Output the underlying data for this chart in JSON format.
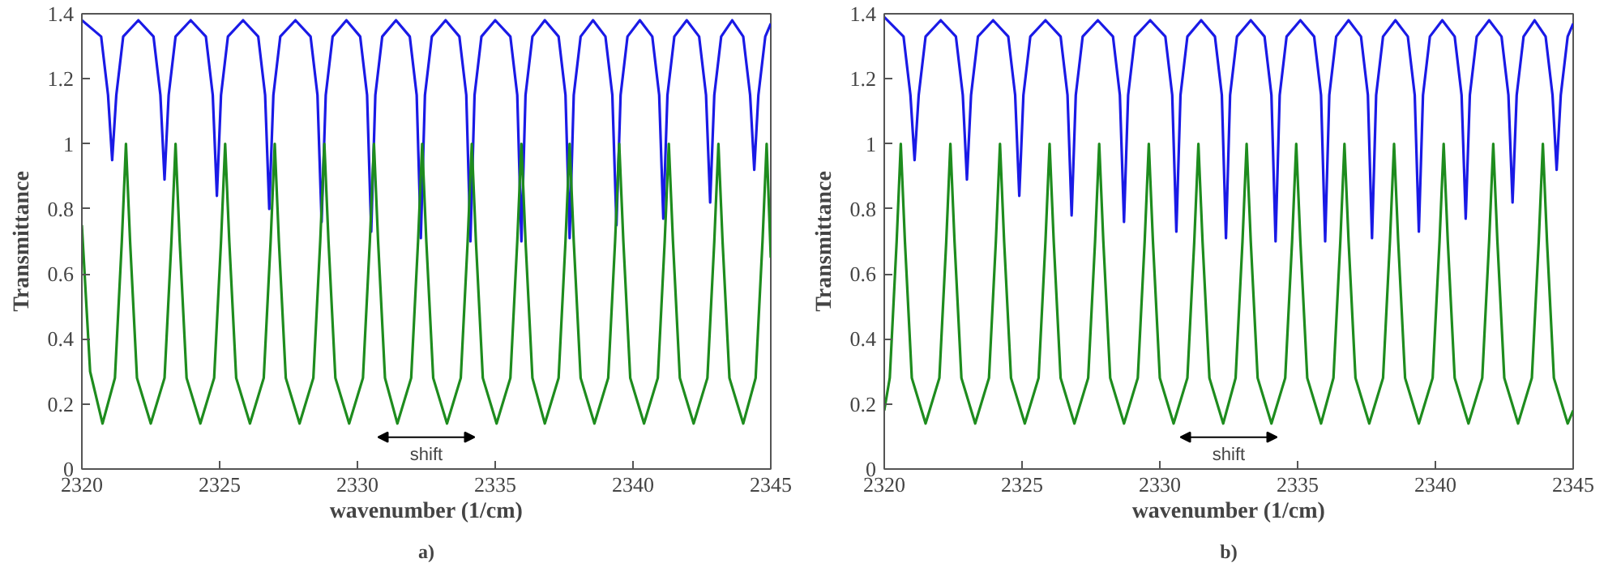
{
  "chart_data": [
    {
      "type": "line",
      "xlabel": "wavenumber (1/cm)",
      "ylabel": "Transmittance",
      "xlim": [
        2320,
        2345
      ],
      "ylim": [
        0,
        1.4
      ],
      "xticks": [
        2320,
        2325,
        2330,
        2335,
        2340,
        2345
      ],
      "yticks": [
        0,
        0.2,
        0.4,
        0.6,
        0.8,
        1,
        1.2,
        1.4
      ],
      "grid": false,
      "line_style": "solid",
      "marker": "none",
      "annotations": [
        "shift",
        "a)"
      ],
      "series": [
        {
          "color": "#1a1ae6",
          "x": [
            2320,
            2320.7,
            2320.95,
            2321.1,
            2321.25,
            2321.5,
            2322.05,
            2322.6,
            2322.85,
            2323.0,
            2323.15,
            2323.4,
            2323.95,
            2324.5,
            2324.75,
            2324.9,
            2325.05,
            2325.3,
            2325.85,
            2326.4,
            2326.65,
            2326.8,
            2326.95,
            2327.2,
            2327.75,
            2328.3,
            2328.55,
            2328.7,
            2328.85,
            2329.1,
            2329.6,
            2330.1,
            2330.35,
            2330.5,
            2330.65,
            2330.9,
            2331.4,
            2331.9,
            2332.15,
            2332.3,
            2332.45,
            2332.7,
            2333.2,
            2333.7,
            2333.95,
            2334.1,
            2334.25,
            2334.5,
            2335.0,
            2335.55,
            2335.8,
            2335.95,
            2336.1,
            2336.35,
            2336.8,
            2337.3,
            2337.55,
            2337.7,
            2337.85,
            2338.1,
            2338.55,
            2339.0,
            2339.25,
            2339.4,
            2339.55,
            2339.8,
            2340.25,
            2340.7,
            2340.95,
            2341.1,
            2341.25,
            2341.5,
            2341.95,
            2342.4,
            2342.65,
            2342.8,
            2342.95,
            2343.2,
            2343.6,
            2344.0,
            2344.25,
            2344.4,
            2344.55,
            2344.8,
            2345
          ],
          "values": [
            1.38,
            1.33,
            1.15,
            0.95,
            1.15,
            1.33,
            1.38,
            1.33,
            1.15,
            0.89,
            1.15,
            1.33,
            1.38,
            1.33,
            1.15,
            0.84,
            1.15,
            1.33,
            1.38,
            1.33,
            1.15,
            0.8,
            1.15,
            1.33,
            1.38,
            1.33,
            1.15,
            0.76,
            1.15,
            1.33,
            1.38,
            1.33,
            1.15,
            0.73,
            1.15,
            1.33,
            1.38,
            1.33,
            1.15,
            0.71,
            1.15,
            1.33,
            1.38,
            1.33,
            1.15,
            0.7,
            1.15,
            1.33,
            1.38,
            1.33,
            1.15,
            0.7,
            1.15,
            1.33,
            1.38,
            1.33,
            1.15,
            0.71,
            1.15,
            1.33,
            1.38,
            1.33,
            1.15,
            0.75,
            1.15,
            1.33,
            1.38,
            1.33,
            1.15,
            0.77,
            1.15,
            1.33,
            1.38,
            1.33,
            1.15,
            0.82,
            1.15,
            1.33,
            1.38,
            1.33,
            1.15,
            0.92,
            1.15,
            1.33,
            1.37
          ]
        },
        {
          "color": "#1e8c1e",
          "x": [
            2320,
            2320.3,
            2320.75,
            2321.2,
            2321.45,
            2321.6,
            2321.75,
            2322.0,
            2322.5,
            2323.0,
            2323.25,
            2323.4,
            2323.55,
            2323.8,
            2324.3,
            2324.8,
            2325.05,
            2325.2,
            2325.35,
            2325.6,
            2326.1,
            2326.6,
            2326.85,
            2327.0,
            2327.15,
            2327.4,
            2327.9,
            2328.4,
            2328.65,
            2328.8,
            2328.95,
            2329.2,
            2329.7,
            2330.2,
            2330.45,
            2330.6,
            2330.75,
            2331.0,
            2331.45,
            2331.95,
            2332.2,
            2332.35,
            2332.5,
            2332.75,
            2333.25,
            2333.75,
            2334.0,
            2334.15,
            2334.3,
            2334.55,
            2335.05,
            2335.55,
            2335.8,
            2335.95,
            2336.1,
            2336.35,
            2336.8,
            2337.3,
            2337.55,
            2337.7,
            2337.85,
            2338.1,
            2338.6,
            2339.1,
            2339.35,
            2339.5,
            2339.65,
            2339.9,
            2340.4,
            2340.9,
            2341.15,
            2341.3,
            2341.45,
            2341.7,
            2342.2,
            2342.7,
            2342.95,
            2343.1,
            2343.25,
            2343.5,
            2344.0,
            2344.45,
            2344.7,
            2344.85,
            2345
          ],
          "values": [
            0.75,
            0.3,
            0.14,
            0.28,
            0.7,
            1,
            0.7,
            0.28,
            0.14,
            0.28,
            0.7,
            1,
            0.7,
            0.28,
            0.14,
            0.28,
            0.7,
            1,
            0.7,
            0.28,
            0.14,
            0.28,
            0.7,
            1,
            0.7,
            0.28,
            0.14,
            0.28,
            0.7,
            1,
            0.7,
            0.28,
            0.14,
            0.28,
            0.7,
            1,
            0.7,
            0.28,
            0.14,
            0.28,
            0.7,
            1,
            0.7,
            0.28,
            0.14,
            0.28,
            0.7,
            1,
            0.7,
            0.28,
            0.14,
            0.28,
            0.7,
            1,
            0.7,
            0.28,
            0.14,
            0.28,
            0.7,
            1,
            0.7,
            0.28,
            0.14,
            0.28,
            0.7,
            1,
            0.7,
            0.28,
            0.14,
            0.28,
            0.7,
            1,
            0.7,
            0.28,
            0.14,
            0.28,
            0.7,
            1,
            0.7,
            0.28,
            0.14,
            0.28,
            0.7,
            1,
            0.65
          ]
        }
      ]
    },
    {
      "type": "line",
      "xlabel": "wavenumber (1/cm)",
      "ylabel": "Transmittance",
      "xlim": [
        2320,
        2345
      ],
      "ylim": [
        0,
        1.4
      ],
      "xticks": [
        2320,
        2325,
        2330,
        2335,
        2340,
        2345
      ],
      "yticks": [
        0,
        0.2,
        0.4,
        0.6,
        0.8,
        1,
        1.2,
        1.4
      ],
      "grid": false,
      "line_style": "solid",
      "marker": "none",
      "annotations": [
        "shift",
        "b)"
      ],
      "series": [
        {
          "color": "#1a1ae6",
          "x": [
            2320,
            2320.7,
            2320.95,
            2321.1,
            2321.25,
            2321.5,
            2322.05,
            2322.6,
            2322.85,
            2323.0,
            2323.15,
            2323.4,
            2323.95,
            2324.5,
            2324.75,
            2324.9,
            2325.05,
            2325.3,
            2325.85,
            2326.4,
            2326.65,
            2326.8,
            2326.95,
            2327.2,
            2327.75,
            2328.3,
            2328.55,
            2328.7,
            2328.85,
            2329.1,
            2329.65,
            2330.2,
            2330.45,
            2330.6,
            2330.75,
            2331.0,
            2331.5,
            2332.0,
            2332.25,
            2332.4,
            2332.55,
            2332.8,
            2333.3,
            2333.8,
            2334.05,
            2334.2,
            2334.35,
            2334.6,
            2335.1,
            2335.6,
            2335.85,
            2336.0,
            2336.15,
            2336.4,
            2336.85,
            2337.3,
            2337.55,
            2337.7,
            2337.85,
            2338.1,
            2338.55,
            2339.0,
            2339.25,
            2339.4,
            2339.55,
            2339.8,
            2340.25,
            2340.7,
            2340.95,
            2341.1,
            2341.25,
            2341.5,
            2341.95,
            2342.4,
            2342.65,
            2342.8,
            2342.95,
            2343.2,
            2343.6,
            2344.0,
            2344.25,
            2344.4,
            2344.55,
            2344.8,
            2345
          ],
          "values": [
            1.39,
            1.33,
            1.15,
            0.95,
            1.15,
            1.33,
            1.38,
            1.33,
            1.15,
            0.89,
            1.15,
            1.33,
            1.38,
            1.33,
            1.15,
            0.84,
            1.15,
            1.33,
            1.38,
            1.33,
            1.15,
            0.78,
            1.15,
            1.33,
            1.38,
            1.33,
            1.15,
            0.76,
            1.15,
            1.33,
            1.38,
            1.33,
            1.15,
            0.73,
            1.15,
            1.33,
            1.38,
            1.33,
            1.15,
            0.71,
            1.15,
            1.33,
            1.38,
            1.33,
            1.15,
            0.7,
            1.15,
            1.33,
            1.38,
            1.33,
            1.15,
            0.7,
            1.15,
            1.33,
            1.38,
            1.33,
            1.15,
            0.71,
            1.15,
            1.33,
            1.38,
            1.33,
            1.15,
            0.73,
            1.15,
            1.33,
            1.38,
            1.33,
            1.15,
            0.77,
            1.15,
            1.33,
            1.38,
            1.33,
            1.15,
            0.82,
            1.15,
            1.33,
            1.38,
            1.33,
            1.15,
            0.92,
            1.15,
            1.33,
            1.37
          ]
        },
        {
          "color": "#1e8c1e",
          "x": [
            2320,
            2320.2,
            2320.45,
            2320.6,
            2320.75,
            2321.0,
            2321.5,
            2322.0,
            2322.25,
            2322.4,
            2322.55,
            2322.8,
            2323.3,
            2323.8,
            2324.05,
            2324.2,
            2324.35,
            2324.6,
            2325.1,
            2325.6,
            2325.85,
            2326.0,
            2326.15,
            2326.4,
            2326.9,
            2327.4,
            2327.65,
            2327.8,
            2327.95,
            2328.2,
            2328.7,
            2329.2,
            2329.45,
            2329.6,
            2329.75,
            2330.0,
            2330.5,
            2331.0,
            2331.25,
            2331.4,
            2331.55,
            2331.8,
            2332.3,
            2332.75,
            2333.0,
            2333.15,
            2333.3,
            2333.55,
            2334.05,
            2334.55,
            2334.8,
            2334.95,
            2335.1,
            2335.35,
            2335.85,
            2336.3,
            2336.55,
            2336.7,
            2336.85,
            2337.1,
            2337.6,
            2338.1,
            2338.35,
            2338.5,
            2338.65,
            2338.9,
            2339.4,
            2339.9,
            2340.15,
            2340.3,
            2340.45,
            2340.7,
            2341.2,
            2341.7,
            2341.95,
            2342.1,
            2342.25,
            2342.5,
            2343.0,
            2343.5,
            2343.75,
            2343.9,
            2344.05,
            2344.3,
            2344.8,
            2345
          ],
          "values": [
            0.18,
            0.28,
            0.7,
            1,
            0.7,
            0.28,
            0.14,
            0.28,
            0.7,
            1,
            0.7,
            0.28,
            0.14,
            0.28,
            0.7,
            1,
            0.7,
            0.28,
            0.14,
            0.28,
            0.7,
            1,
            0.7,
            0.28,
            0.14,
            0.28,
            0.7,
            1,
            0.7,
            0.28,
            0.14,
            0.28,
            0.7,
            1,
            0.7,
            0.28,
            0.14,
            0.28,
            0.7,
            1,
            0.7,
            0.28,
            0.14,
            0.28,
            0.7,
            1,
            0.7,
            0.28,
            0.14,
            0.28,
            0.7,
            1,
            0.7,
            0.28,
            0.14,
            0.28,
            0.7,
            1,
            0.7,
            0.28,
            0.14,
            0.28,
            0.7,
            1,
            0.7,
            0.28,
            0.14,
            0.28,
            0.7,
            1,
            0.7,
            0.28,
            0.14,
            0.28,
            0.7,
            1,
            0.7,
            0.28,
            0.14,
            0.28,
            0.7,
            1,
            0.7,
            0.28,
            0.14,
            0.18
          ]
        }
      ]
    }
  ]
}
